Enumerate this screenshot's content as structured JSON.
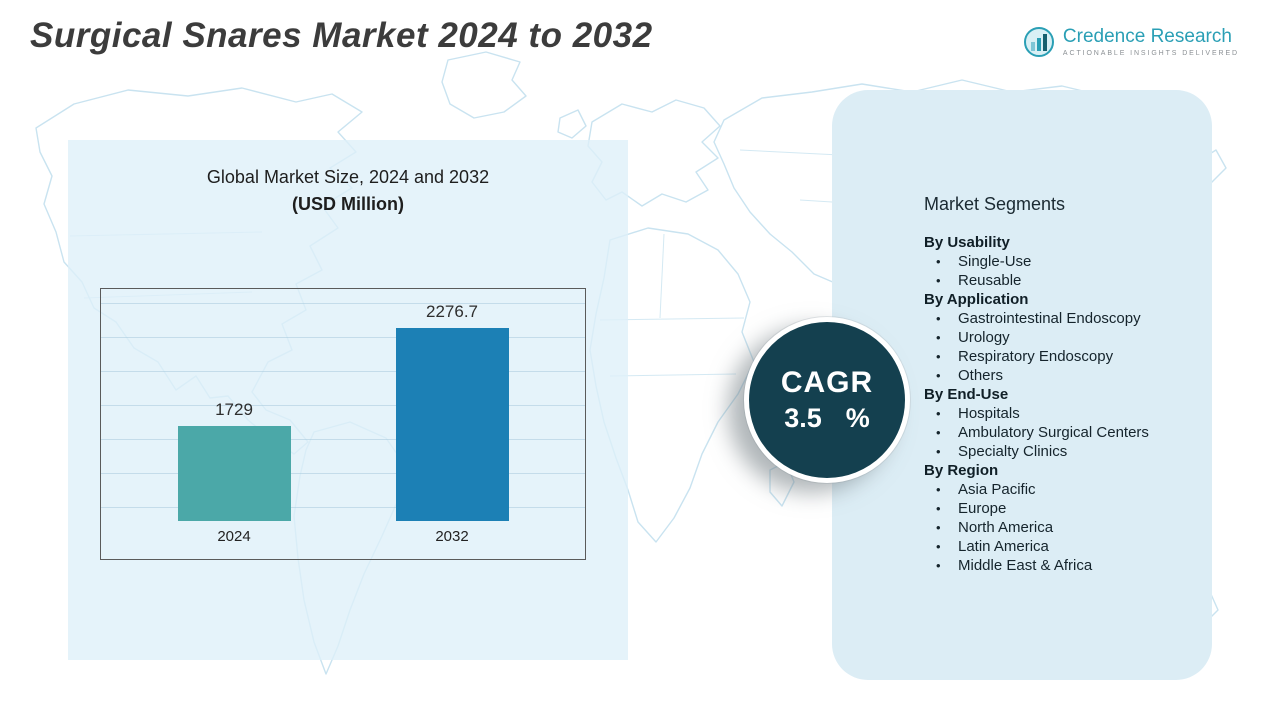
{
  "header": {
    "title": "Surgical Snares Market 2024 to 2032"
  },
  "logo": {
    "name": "Credence Research",
    "tagline": "Actionable Insights Delivered"
  },
  "chart_data": {
    "type": "bar",
    "title": "Global Market Size, 2024 and 2032",
    "subtitle": "(USD Million)",
    "categories": [
      "2024",
      "2032"
    ],
    "values": [
      1729,
      2276.7
    ],
    "unit": "USD Million",
    "ylim": [
      1200,
      2400
    ],
    "grid": true,
    "legend": false,
    "bar_colors": [
      "#4BA8A8",
      "#1C80B5"
    ]
  },
  "cagr": {
    "label": "CAGR",
    "value": "3.5",
    "unit": "%"
  },
  "segments": {
    "title": "Market Segments",
    "groups": [
      {
        "label": "By Usability",
        "items": [
          "Single-Use",
          "Reusable"
        ]
      },
      {
        "label": "By Application",
        "items": [
          "Gastrointestinal Endoscopy",
          "Urology",
          "Respiratory Endoscopy",
          "Others"
        ]
      },
      {
        "label": "By End-Use",
        "items": [
          "Hospitals",
          "Ambulatory Surgical Centers",
          "Specialty Clinics"
        ]
      },
      {
        "label": "By Region",
        "items": [
          "Asia Pacific",
          "Europe",
          "North America",
          "Latin America",
          "Middle East & Africa"
        ]
      }
    ]
  },
  "colors": {
    "brand_teal": "#2A9FB5",
    "cagr_circle": "#14404F",
    "panel_blue": "#DCEDF5",
    "map_line": "#C9E3F0",
    "bar_2024": "#4BA8A8",
    "bar_2032": "#1C80B5"
  }
}
